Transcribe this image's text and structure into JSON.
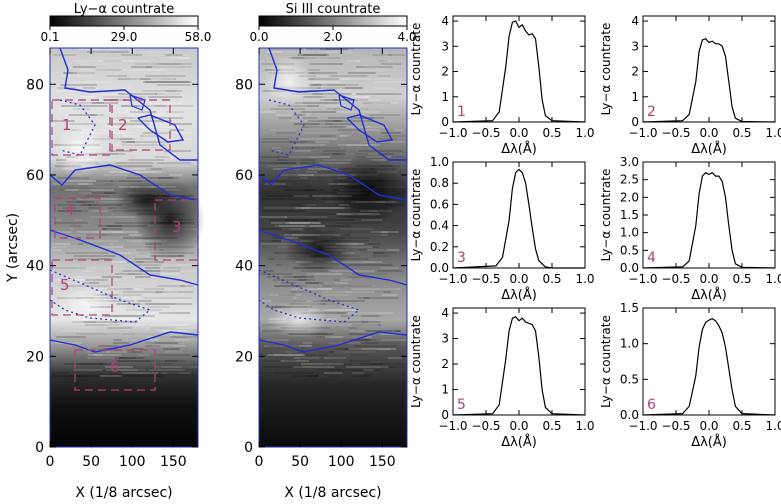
{
  "chart_data": [
    {
      "type": "heatmap",
      "colorbar": {
        "title": "Ly−α countrate",
        "ticks": [
          "0.1",
          "29.0",
          "58.0"
        ],
        "range": [
          0.1,
          58.0
        ],
        "colormap": "grayscale"
      },
      "xlabel": "X (1/8 arcsec)",
      "ylabel": "Y (arcsec)",
      "xticks": [
        "0",
        "50",
        "100",
        "150"
      ],
      "yticks": [
        "0",
        "20",
        "40",
        "60",
        "80"
      ],
      "xlim": [
        0,
        180
      ],
      "ylim": [
        0,
        88
      ],
      "contour_color": "#1f2fd6",
      "box_color": "#b0407a",
      "region_labels": [
        "1",
        "2",
        "3",
        "4",
        "5",
        "6"
      ]
    },
    {
      "type": "heatmap",
      "colorbar": {
        "title": "Si III countrate",
        "ticks": [
          "0.0",
          "2.0",
          "4.0"
        ],
        "range": [
          0.0,
          4.0
        ],
        "colormap": "grayscale"
      },
      "xlabel": "X (1/8 arcsec)",
      "ylabel": "",
      "xticks": [
        "0",
        "50",
        "100",
        "150"
      ],
      "yticks": [
        "0",
        "20",
        "40",
        "60",
        "80"
      ],
      "xlim": [
        0,
        180
      ],
      "ylim": [
        0,
        88
      ],
      "contour_color": "#1f2fd6"
    }
  ],
  "profiles": {
    "xlabel": "Δλ(Å)",
    "ylabel": "Ly−α countrate",
    "xticks": [
      "−1.0",
      "−0.5",
      "0.0",
      "0.5",
      "1.0"
    ],
    "xlim": [
      -1.0,
      1.0
    ],
    "panels": [
      {
        "label": "1",
        "ylim": [
          0,
          4.2
        ],
        "yticks": [
          "0",
          "1",
          "2",
          "3",
          "4"
        ],
        "x": [
          -1.0,
          -0.4,
          -0.3,
          -0.2,
          -0.15,
          -0.1,
          -0.05,
          0.0,
          0.05,
          0.1,
          0.15,
          0.2,
          0.25,
          0.3,
          0.35,
          0.4,
          0.5,
          1.0
        ],
        "y": [
          0.0,
          0.05,
          0.4,
          2.2,
          3.4,
          3.95,
          4.0,
          3.75,
          3.85,
          3.6,
          3.45,
          3.5,
          3.3,
          2.2,
          0.9,
          0.25,
          0.05,
          0.0
        ]
      },
      {
        "label": "2",
        "ylim": [
          0,
          4.2
        ],
        "yticks": [
          "0",
          "1",
          "2",
          "3",
          "4"
        ],
        "x": [
          -1.0,
          -0.4,
          -0.3,
          -0.2,
          -0.15,
          -0.1,
          -0.05,
          0.0,
          0.05,
          0.1,
          0.15,
          0.2,
          0.25,
          0.3,
          0.35,
          0.4,
          0.5,
          1.0
        ],
        "y": [
          0.0,
          0.05,
          0.3,
          1.6,
          2.8,
          3.25,
          3.3,
          3.15,
          3.2,
          3.1,
          3.1,
          3.0,
          2.6,
          1.6,
          0.6,
          0.15,
          0.02,
          0.0
        ]
      },
      {
        "label": "3",
        "ylim": [
          0,
          1.0
        ],
        "yticks": [
          "0.0",
          "0.2",
          "0.4",
          "0.6",
          "0.8",
          "1.0"
        ],
        "x": [
          -1.0,
          -0.35,
          -0.25,
          -0.15,
          -0.1,
          -0.05,
          0.0,
          0.05,
          0.1,
          0.15,
          0.2,
          0.25,
          0.3,
          0.4,
          0.5,
          1.0
        ],
        "y": [
          0.0,
          0.02,
          0.1,
          0.45,
          0.75,
          0.9,
          0.93,
          0.9,
          0.8,
          0.6,
          0.38,
          0.18,
          0.07,
          0.01,
          0.0,
          0.0
        ]
      },
      {
        "label": "4",
        "ylim": [
          0,
          3.0
        ],
        "yticks": [
          "0.0",
          "0.5",
          "1.0",
          "1.5",
          "2.0",
          "2.5",
          "3.0"
        ],
        "x": [
          -1.0,
          -0.4,
          -0.3,
          -0.2,
          -0.15,
          -0.1,
          -0.05,
          0.0,
          0.05,
          0.1,
          0.15,
          0.2,
          0.25,
          0.3,
          0.35,
          0.4,
          0.5,
          1.0
        ],
        "y": [
          0.0,
          0.03,
          0.2,
          1.2,
          2.1,
          2.6,
          2.7,
          2.65,
          2.7,
          2.6,
          2.6,
          2.45,
          2.0,
          1.2,
          0.5,
          0.12,
          0.02,
          0.0
        ]
      },
      {
        "label": "5",
        "ylim": [
          0,
          4.2
        ],
        "yticks": [
          "0",
          "1",
          "2",
          "3",
          "4"
        ],
        "x": [
          -1.0,
          -0.4,
          -0.3,
          -0.2,
          -0.15,
          -0.1,
          -0.05,
          0.0,
          0.05,
          0.1,
          0.15,
          0.2,
          0.25,
          0.3,
          0.35,
          0.4,
          0.5,
          1.0
        ],
        "y": [
          0.0,
          0.05,
          0.4,
          2.2,
          3.3,
          3.8,
          3.85,
          3.7,
          3.8,
          3.65,
          3.6,
          3.55,
          3.3,
          2.3,
          1.0,
          0.3,
          0.05,
          0.0
        ]
      },
      {
        "label": "6",
        "ylim": [
          0,
          1.5
        ],
        "yticks": [
          "0.0",
          "0.5",
          "1.0",
          "1.5"
        ],
        "x": [
          -1.0,
          -0.4,
          -0.3,
          -0.2,
          -0.15,
          -0.1,
          -0.05,
          0.0,
          0.05,
          0.1,
          0.15,
          0.2,
          0.25,
          0.3,
          0.35,
          0.4,
          0.5,
          1.0
        ],
        "y": [
          0.0,
          0.02,
          0.12,
          0.55,
          0.95,
          1.2,
          1.3,
          1.33,
          1.35,
          1.32,
          1.25,
          1.15,
          0.95,
          0.65,
          0.35,
          0.12,
          0.02,
          0.0
        ]
      }
    ]
  }
}
